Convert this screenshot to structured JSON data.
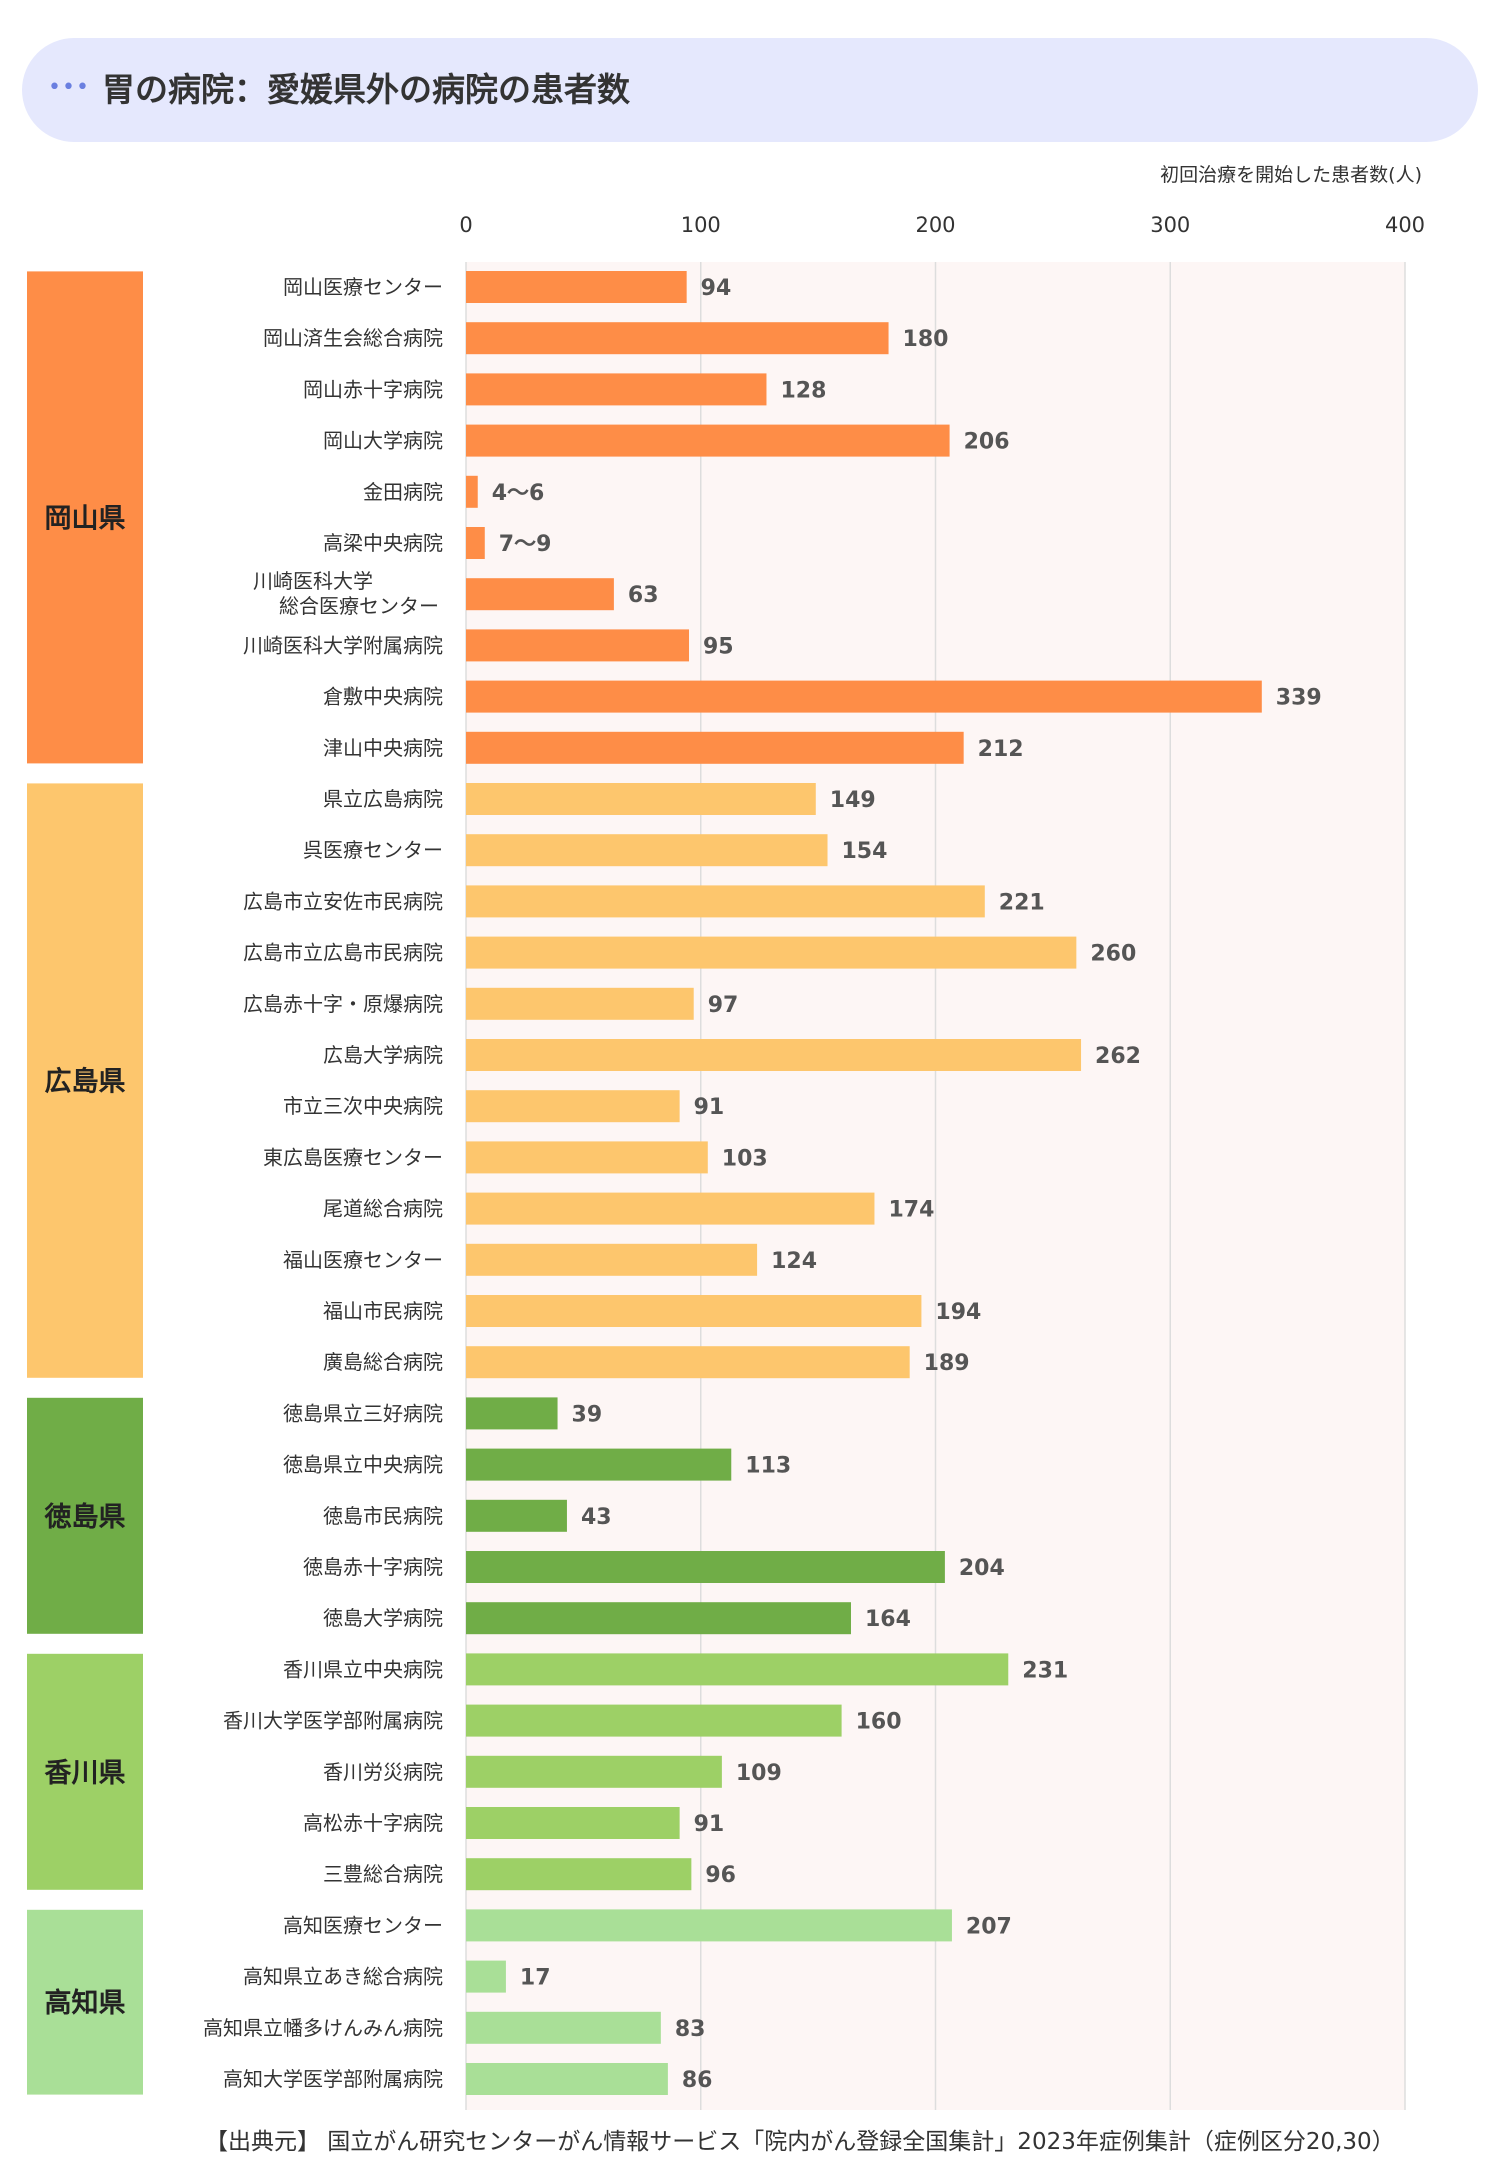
{
  "header": {
    "title": "胃の病院：愛媛県外の病院の患者数",
    "icon": "ellipsis-icon"
  },
  "axis_unit_label": "初回治療を開始した患者数(人)",
  "source_note": "【出典元】 国立がん研究センターがん情報サービス「院内がん登録全国集計」2023年症例集計（症例区分20,30）",
  "colors": {
    "岡山県": "#fe8d47",
    "広島県": "#fdc66d",
    "徳島県": "#70ad47",
    "香川県": "#9dd066",
    "高知県": "#a9df97",
    "plot_background": "#fdf6f5",
    "gridline": "#dddddd",
    "header_background": "#e5e8fd"
  },
  "chart_data": {
    "type": "bar",
    "orientation": "horizontal",
    "xlim": [
      0,
      400
    ],
    "xticks": [
      0,
      100,
      200,
      300,
      400
    ],
    "xlabel": "初回治療を開始した患者数(人)",
    "grid": true,
    "groups": [
      {
        "name": "岡山県",
        "items": [
          {
            "label": "岡山医療センター",
            "value": 94,
            "display": "94"
          },
          {
            "label": "岡山済生会総合病院",
            "value": 180,
            "display": "180"
          },
          {
            "label": "岡山赤十字病院",
            "value": 128,
            "display": "128"
          },
          {
            "label": "岡山大学病院",
            "value": 206,
            "display": "206"
          },
          {
            "label": "金田病院",
            "value": 5,
            "display": "4～6"
          },
          {
            "label": "高梁中央病院",
            "value": 8,
            "display": "7～9"
          },
          {
            "label": "川崎医科大学\n総合医療センター",
            "value": 63,
            "display": "63"
          },
          {
            "label": "川崎医科大学附属病院",
            "value": 95,
            "display": "95"
          },
          {
            "label": "倉敷中央病院",
            "value": 339,
            "display": "339"
          },
          {
            "label": "津山中央病院",
            "value": 212,
            "display": "212"
          }
        ]
      },
      {
        "name": "広島県",
        "items": [
          {
            "label": "県立広島病院",
            "value": 149,
            "display": "149"
          },
          {
            "label": "呉医療センター",
            "value": 154,
            "display": "154"
          },
          {
            "label": "広島市立安佐市民病院",
            "value": 221,
            "display": "221"
          },
          {
            "label": "広島市立広島市民病院",
            "value": 260,
            "display": "260"
          },
          {
            "label": "広島赤十字・原爆病院",
            "value": 97,
            "display": "97"
          },
          {
            "label": "広島大学病院",
            "value": 262,
            "display": "262"
          },
          {
            "label": "市立三次中央病院",
            "value": 91,
            "display": "91"
          },
          {
            "label": "東広島医療センター",
            "value": 103,
            "display": "103"
          },
          {
            "label": "尾道総合病院",
            "value": 174,
            "display": "174"
          },
          {
            "label": "福山医療センター",
            "value": 124,
            "display": "124"
          },
          {
            "label": "福山市民病院",
            "value": 194,
            "display": "194"
          },
          {
            "label": "廣島総合病院",
            "value": 189,
            "display": "189"
          }
        ]
      },
      {
        "name": "徳島県",
        "items": [
          {
            "label": "徳島県立三好病院",
            "value": 39,
            "display": "39"
          },
          {
            "label": "徳島県立中央病院",
            "value": 113,
            "display": "113"
          },
          {
            "label": "徳島市民病院",
            "value": 43,
            "display": "43"
          },
          {
            "label": "徳島赤十字病院",
            "value": 204,
            "display": "204"
          },
          {
            "label": "徳島大学病院",
            "value": 164,
            "display": "164"
          }
        ]
      },
      {
        "name": "香川県",
        "items": [
          {
            "label": "香川県立中央病院",
            "value": 231,
            "display": "231"
          },
          {
            "label": "香川大学医学部附属病院",
            "value": 160,
            "display": "160"
          },
          {
            "label": "香川労災病院",
            "value": 109,
            "display": "109"
          },
          {
            "label": "高松赤十字病院",
            "value": 91,
            "display": "91"
          },
          {
            "label": "三豊総合病院",
            "value": 96,
            "display": "96"
          }
        ]
      },
      {
        "name": "高知県",
        "items": [
          {
            "label": "高知医療センター",
            "value": 207,
            "display": "207"
          },
          {
            "label": "高知県立あき総合病院",
            "value": 17,
            "display": "17"
          },
          {
            "label": "高知県立幡多けんみん病院",
            "value": 83,
            "display": "83"
          },
          {
            "label": "高知大学医学部附属病院",
            "value": 86,
            "display": "86"
          }
        ]
      }
    ]
  }
}
